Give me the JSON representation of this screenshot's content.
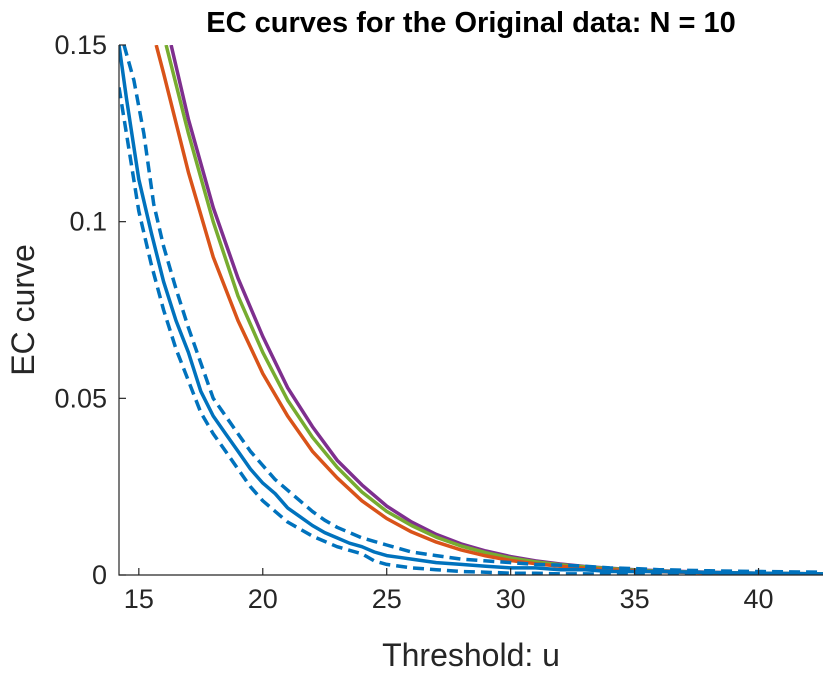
{
  "chart_data": {
    "type": "line",
    "title": "EC curves for the Original data: N = 10",
    "xlabel": "Threshold: u",
    "ylabel": "EC curve",
    "xlim": [
      14.2,
      42.6
    ],
    "ylim": [
      0,
      0.15
    ],
    "xticks": [
      15,
      20,
      25,
      30,
      35,
      40
    ],
    "yticks": [
      0,
      0.05,
      0.1,
      0.15
    ],
    "ytick_labels": [
      "0",
      "0.05",
      "0.1",
      "0.15"
    ],
    "grid": false,
    "legend": "none",
    "series": [
      {
        "color": "#7E2F8E",
        "style": "solid",
        "x": [
          16.3,
          17,
          18,
          19,
          20,
          21,
          22,
          23,
          24,
          25,
          26,
          27,
          28,
          29,
          30,
          31,
          32,
          33,
          34,
          35,
          36,
          38,
          40,
          42.6
        ],
        "y": [
          0.15,
          0.129,
          0.104,
          0.084,
          0.0675,
          0.053,
          0.042,
          0.0325,
          0.0255,
          0.0195,
          0.015,
          0.0115,
          0.0088,
          0.0068,
          0.0052,
          0.004,
          0.0031,
          0.0024,
          0.0019,
          0.0015,
          0.0012,
          0.0008,
          0.0005,
          0.0003
        ]
      },
      {
        "color": "#77AC30",
        "style": "solid",
        "x": [
          16.1,
          17,
          18,
          19,
          20,
          21,
          22,
          23,
          24,
          25,
          26,
          27,
          28,
          29,
          30,
          31,
          32,
          33,
          34,
          35,
          36,
          38,
          40,
          42.6
        ],
        "y": [
          0.15,
          0.125,
          0.1,
          0.079,
          0.063,
          0.0495,
          0.039,
          0.0305,
          0.0235,
          0.018,
          0.014,
          0.0107,
          0.0082,
          0.0063,
          0.0048,
          0.0037,
          0.0029,
          0.0023,
          0.0018,
          0.0014,
          0.0011,
          0.0007,
          0.0005,
          0.0003
        ]
      },
      {
        "color": "#D95319",
        "style": "solid",
        "x": [
          15.7,
          16,
          17,
          18,
          19,
          20,
          21,
          22,
          23,
          24,
          25,
          26,
          27,
          28,
          29,
          30,
          31,
          32,
          33,
          34,
          35,
          36,
          38,
          40,
          42.6
        ],
        "y": [
          0.15,
          0.142,
          0.114,
          0.09,
          0.072,
          0.057,
          0.045,
          0.035,
          0.0275,
          0.021,
          0.016,
          0.0122,
          0.0093,
          0.0071,
          0.0054,
          0.0041,
          0.0032,
          0.0025,
          0.0019,
          0.0015,
          0.0012,
          0.0009,
          0.0006,
          0.0004,
          0.0002
        ]
      },
      {
        "color": "#0072BD",
        "style": "solid",
        "x": [
          14.2,
          14.5,
          15,
          15.5,
          16,
          16.5,
          17,
          17.5,
          18,
          18.5,
          19,
          19.5,
          20,
          20.5,
          21,
          21.5,
          22,
          22.5,
          23,
          23.5,
          24,
          24.5,
          25,
          25.5,
          26,
          27,
          28,
          29,
          30,
          31,
          32,
          33,
          34,
          35,
          36,
          38,
          40,
          42.6
        ],
        "y": [
          0.15,
          0.135,
          0.112,
          0.097,
          0.083,
          0.072,
          0.063,
          0.052,
          0.045,
          0.04,
          0.035,
          0.03,
          0.026,
          0.023,
          0.019,
          0.0165,
          0.014,
          0.012,
          0.0105,
          0.009,
          0.008,
          0.0065,
          0.0055,
          0.005,
          0.0045,
          0.0035,
          0.003,
          0.0025,
          0.002,
          0.002,
          0.0015,
          0.0015,
          0.001,
          0.001,
          0.001,
          0.0007,
          0.0005,
          0.0003
        ]
      },
      {
        "color": "#0072BD",
        "style": "dashed",
        "x": [
          14.4,
          14.8,
          15.2,
          15.6,
          16,
          16.5,
          17,
          17.5,
          18,
          18.5,
          19,
          19.5,
          20,
          20.5,
          21,
          21.5,
          22,
          22.5,
          23,
          23.5,
          24,
          24.5,
          25,
          25.5,
          26,
          27,
          28,
          29,
          30,
          31,
          32,
          33,
          34,
          35,
          36,
          38,
          40,
          42.6
        ],
        "y": [
          0.15,
          0.14,
          0.125,
          0.105,
          0.093,
          0.081,
          0.07,
          0.06,
          0.05,
          0.045,
          0.04,
          0.035,
          0.031,
          0.027,
          0.024,
          0.021,
          0.018,
          0.0155,
          0.0135,
          0.012,
          0.0105,
          0.0095,
          0.0085,
          0.0075,
          0.0065,
          0.0055,
          0.0045,
          0.004,
          0.0035,
          0.003,
          0.0028,
          0.0025,
          0.002,
          0.0018,
          0.0015,
          0.0012,
          0.001,
          0.0008
        ]
      },
      {
        "color": "#0072BD",
        "style": "dashed",
        "x": [
          14.2,
          14.5,
          15,
          15.5,
          16,
          16.5,
          17,
          17.5,
          18,
          18.5,
          19,
          19.5,
          20,
          20.5,
          21,
          21.5,
          22,
          22.5,
          23,
          23.5,
          24,
          24.5,
          25,
          26,
          27,
          28,
          29,
          30,
          31,
          32,
          33,
          34,
          35,
          36,
          38,
          40,
          42.6
        ],
        "y": [
          0.138,
          0.125,
          0.103,
          0.088,
          0.075,
          0.064,
          0.055,
          0.046,
          0.04,
          0.035,
          0.03,
          0.025,
          0.021,
          0.018,
          0.015,
          0.013,
          0.011,
          0.0095,
          0.008,
          0.007,
          0.006,
          0.004,
          0.003,
          0.002,
          0.0015,
          0.001,
          0.0008,
          0.0005,
          0.0005,
          0.0003,
          0.0003,
          0.0002,
          0.0002,
          0.0001,
          0.0001,
          0.0001,
          0.0001
        ]
      }
    ]
  }
}
